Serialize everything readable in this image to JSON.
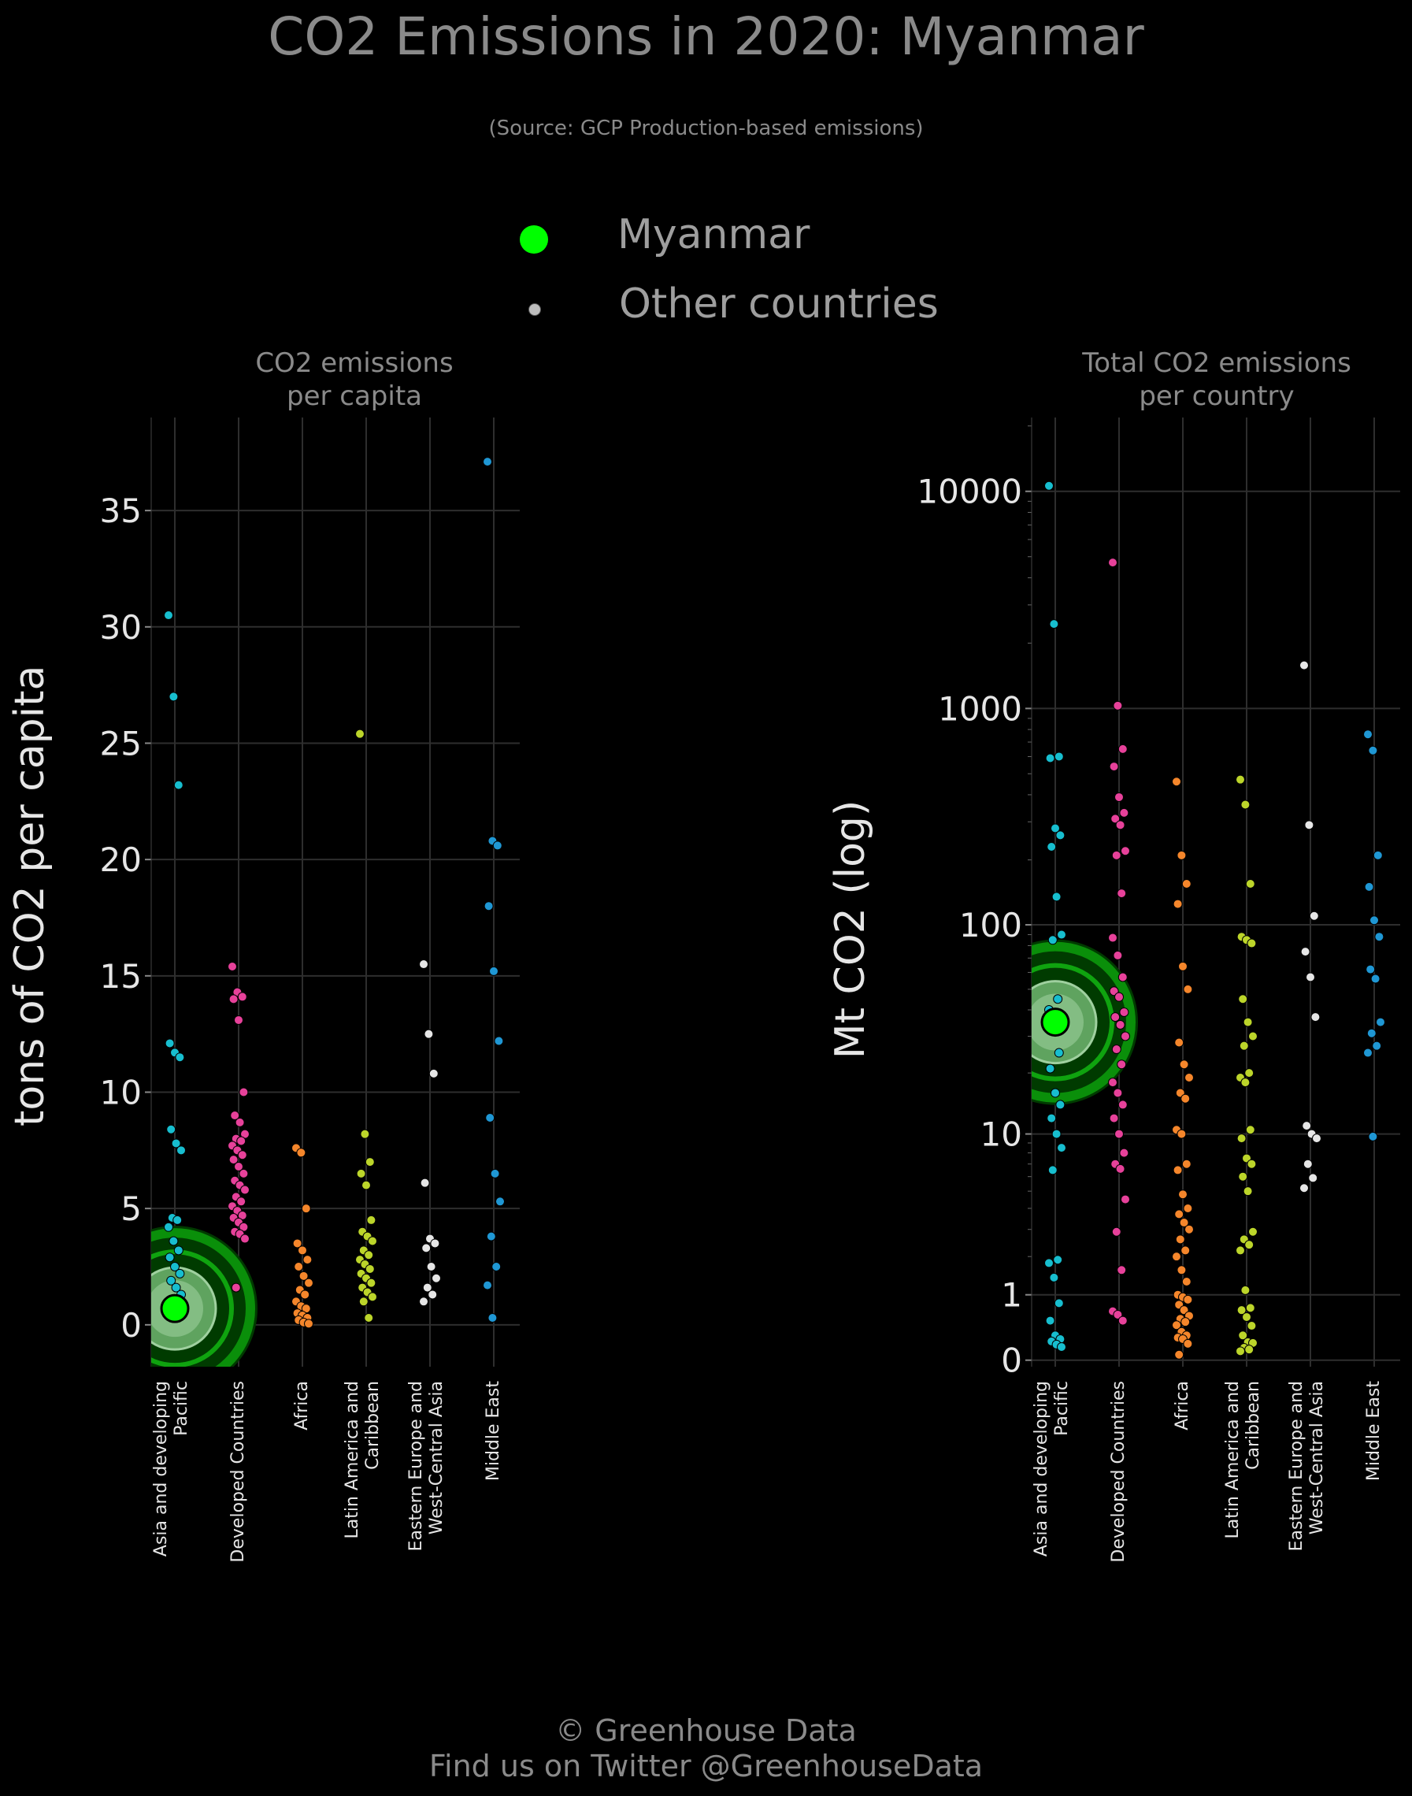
{
  "header": {
    "title": "CO2 Emissions in 2020: Myanmar",
    "subtitle": "(Source: GCP Production-based emissions)"
  },
  "legend": {
    "highlight": {
      "label": "Myanmar",
      "color": "#00ff00"
    },
    "others": {
      "label": "Other countries",
      "color": "#bdbdbd"
    }
  },
  "footer": {
    "line1": "© Greenhouse Data",
    "line2": "Find us on Twitter @GreenhouseData"
  },
  "region_colors": {
    "Asia and developing Pacific": "#17becf",
    "Developed Countries": "#e7419a",
    "Africa": "#f5862b",
    "Latin America and Caribbean": "#bcd52a",
    "Eastern Europe and West-Central Asia": "#e6e6e6",
    "Middle East": "#1f97d4"
  },
  "chart_data": [
    {
      "type": "scatter",
      "title": "CO2 emissions\nper capita",
      "ylabel": "tons of CO2 per capita",
      "ylim": [
        -1.8,
        39
      ],
      "yscale": "linear",
      "yticks": [
        0,
        5,
        10,
        15,
        20,
        25,
        30,
        35
      ],
      "ytick_labels": [
        "0",
        "5",
        "10",
        "15",
        "20",
        "25",
        "30",
        "35"
      ],
      "grid": true,
      "categories": [
        "Asia and developing\nPacific",
        "Developed Countries",
        "Africa",
        "Latin America and\nCaribbean",
        "Eastern Europe and\nWest-Central Asia",
        "Middle East"
      ],
      "highlight": {
        "name": "Myanmar",
        "category": 0,
        "value": 0.7
      },
      "series": [
        {
          "values": [
            30.5,
            27.0,
            23.2,
            12.1,
            11.7,
            11.5,
            8.4,
            7.8,
            7.5,
            4.6,
            4.5,
            4.2,
            3.6,
            3.2,
            2.9,
            2.5,
            2.2,
            1.9,
            1.6,
            1.3,
            1.1,
            0.9,
            0.6,
            0.4
          ]
        },
        {
          "values": [
            15.4,
            14.3,
            14.1,
            14.0,
            13.1,
            10.0,
            9.0,
            8.7,
            8.2,
            8.0,
            7.9,
            7.7,
            7.5,
            7.3,
            7.1,
            6.8,
            6.5,
            6.2,
            6.0,
            5.8,
            5.5,
            5.3,
            5.1,
            4.9,
            4.7,
            4.6,
            4.4,
            4.2,
            4.0,
            3.9,
            3.7,
            1.6
          ]
        },
        {
          "values": [
            7.6,
            7.4,
            5.0,
            3.5,
            3.2,
            2.8,
            2.5,
            2.1,
            1.8,
            1.5,
            1.3,
            1.0,
            0.8,
            0.7,
            0.5,
            0.4,
            0.3,
            0.2,
            0.1,
            0.05
          ]
        },
        {
          "values": [
            25.4,
            8.2,
            7.0,
            6.5,
            6.0,
            4.5,
            4.0,
            3.8,
            3.6,
            3.2,
            3.0,
            2.8,
            2.6,
            2.4,
            2.2,
            2.0,
            1.8,
            1.6,
            1.4,
            1.2,
            1.0,
            0.3
          ]
        },
        {
          "values": [
            15.5,
            12.5,
            10.8,
            6.1,
            3.7,
            3.5,
            3.3,
            2.5,
            2.0,
            1.6,
            1.3,
            1.0
          ]
        },
        {
          "values": [
            37.1,
            20.8,
            20.6,
            18.0,
            15.2,
            12.2,
            8.9,
            6.5,
            5.3,
            3.8,
            2.5,
            1.7,
            0.3
          ]
        }
      ]
    },
    {
      "type": "scatter",
      "title": "Total CO2 emissions\nper country",
      "ylabel": "Mt CO2 (log)",
      "yscale": "log (x+1)",
      "ylim": [
        -0.03,
        4.34
      ],
      "yticks": [
        0,
        1,
        10,
        100,
        1000,
        10000
      ],
      "ytick_labels": [
        "0",
        "1",
        "10",
        "100",
        "1000",
        "10000"
      ],
      "grid": true,
      "categories": [
        "Asia and developing\nPacific",
        "Developed Countries",
        "Africa",
        "Latin America and\nCaribbean",
        "Eastern Europe and\nWest-Central Asia",
        "Middle East"
      ],
      "highlight": {
        "name": "Myanmar",
        "category": 0,
        "value": 35
      },
      "series": [
        {
          "values": [
            10600,
            2450,
            600,
            590,
            280,
            260,
            230,
            135,
            90,
            85,
            45,
            40,
            33,
            25,
            21,
            16,
            14,
            12,
            10,
            8.5,
            6.5,
            1.9,
            1.8,
            1.4,
            0.83,
            0.52,
            0.3,
            0.25,
            0.22,
            0.18,
            0.15
          ]
        },
        {
          "values": [
            4700,
            1030,
            650,
            540,
            390,
            330,
            310,
            290,
            220,
            210,
            140,
            87,
            72,
            57,
            49,
            46,
            39,
            37,
            34,
            30,
            26,
            22,
            18,
            16,
            14,
            12,
            10,
            8,
            7,
            6.6,
            4.5,
            2.9,
            1.6,
            0.68,
            0.62,
            0.52
          ]
        },
        {
          "values": [
            460,
            210,
            155,
            125,
            64,
            50,
            28,
            22,
            19,
            16,
            15,
            10.5,
            10,
            7,
            6.5,
            4.8,
            4,
            3.7,
            3.3,
            3,
            2.6,
            2.2,
            2,
            1.6,
            1.3,
            1.0,
            0.95,
            0.9,
            0.8,
            0.7,
            0.6,
            0.55,
            0.5,
            0.45,
            0.35,
            0.3,
            0.27,
            0.25,
            0.19,
            0.06
          ]
        },
        {
          "values": [
            470,
            360,
            155,
            88,
            85,
            82,
            45,
            35,
            30,
            27,
            20,
            19,
            18,
            10.5,
            9.5,
            7.5,
            7,
            6,
            5,
            2.9,
            2.6,
            2.4,
            2.2,
            1.1,
            0.74,
            0.7,
            0.58,
            0.44,
            0.3,
            0.21,
            0.2,
            0.14,
            0.12,
            0.1
          ]
        },
        {
          "values": [
            1580,
            290,
            110,
            75,
            57,
            37,
            11,
            10,
            9.5,
            7,
            5.9,
            5.2
          ]
        },
        {
          "values": [
            760,
            640,
            210,
            150,
            105,
            88,
            62,
            56,
            35,
            31,
            27,
            25,
            9.7
          ]
        }
      ]
    }
  ]
}
